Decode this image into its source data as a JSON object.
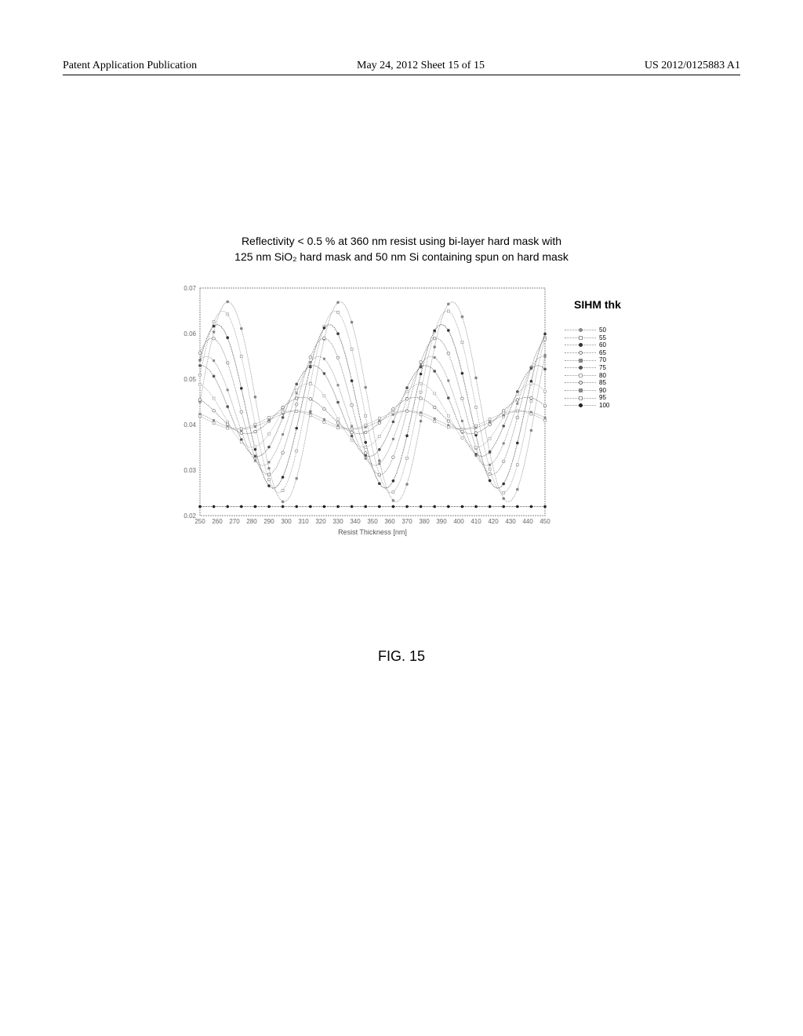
{
  "header": {
    "left": "Patent Application Publication",
    "center": "May 24, 2012  Sheet 15 of 15",
    "right": "US 2012/0125883 A1"
  },
  "caption": {
    "line1": "Reflectivity < 0.5 % at 360 nm resist using bi-layer hard mask with",
    "line2": "125 nm SiO₂ hard mask and 50 nm Si containing spun on hard mask"
  },
  "chart": {
    "type": "line",
    "xlabel": "Resist Thickness [nm]",
    "ylim": [
      0.02,
      0.07
    ],
    "yticks": [
      0.02,
      0.03,
      0.04,
      0.05,
      0.06,
      0.07
    ],
    "xlim": [
      250,
      450
    ],
    "xticks": [
      250,
      260,
      270,
      280,
      290,
      300,
      310,
      320,
      330,
      340,
      350,
      360,
      370,
      380,
      390,
      400,
      410,
      420,
      430,
      440,
      450
    ],
    "background_color": "#ffffff",
    "border_color": "#888888",
    "series": [
      {
        "label": "50",
        "amplitude": 0.022,
        "offset": 0.045,
        "phase": 0.0,
        "color": "#888888",
        "marker": "dot",
        "open": false
      },
      {
        "label": "55",
        "amplitude": 0.02,
        "offset": 0.045,
        "phase": 0.3,
        "color": "#999999",
        "marker": "sq",
        "open": true
      },
      {
        "label": "60",
        "amplitude": 0.018,
        "offset": 0.044,
        "phase": 0.6,
        "color": "#333333",
        "marker": "dot",
        "open": false
      },
      {
        "label": "65",
        "amplitude": 0.015,
        "offset": 0.044,
        "phase": 0.9,
        "color": "#777777",
        "marker": "dot",
        "open": true
      },
      {
        "label": "70",
        "amplitude": 0.012,
        "offset": 0.043,
        "phase": 1.2,
        "color": "#888888",
        "marker": "sq",
        "open": false
      },
      {
        "label": "75",
        "amplitude": 0.01,
        "offset": 0.043,
        "phase": 1.5,
        "color": "#555555",
        "marker": "dot",
        "open": false
      },
      {
        "label": "80",
        "amplitude": 0.007,
        "offset": 0.042,
        "phase": 1.8,
        "color": "#aaaaaa",
        "marker": "sq",
        "open": true
      },
      {
        "label": "85",
        "amplitude": 0.004,
        "offset": 0.042,
        "phase": 2.1,
        "color": "#666666",
        "marker": "dot",
        "open": true
      },
      {
        "label": "90",
        "amplitude": 0.002,
        "offset": 0.041,
        "phase": 2.4,
        "color": "#888888",
        "marker": "sq",
        "open": false
      },
      {
        "label": "95",
        "amplitude": 0.002,
        "offset": 0.041,
        "phase": 2.7,
        "color": "#999999",
        "marker": "sq",
        "open": true
      },
      {
        "label": "100",
        "amplitude": 0.0,
        "offset": 0.022,
        "phase": 3.0,
        "color": "#222222",
        "marker": "dot",
        "open": false
      }
    ],
    "period": 65,
    "axis_fontsize": 8,
    "label_fontsize": 9
  },
  "legend_title": "SIHM thk",
  "figure_label": "FIG. 15"
}
